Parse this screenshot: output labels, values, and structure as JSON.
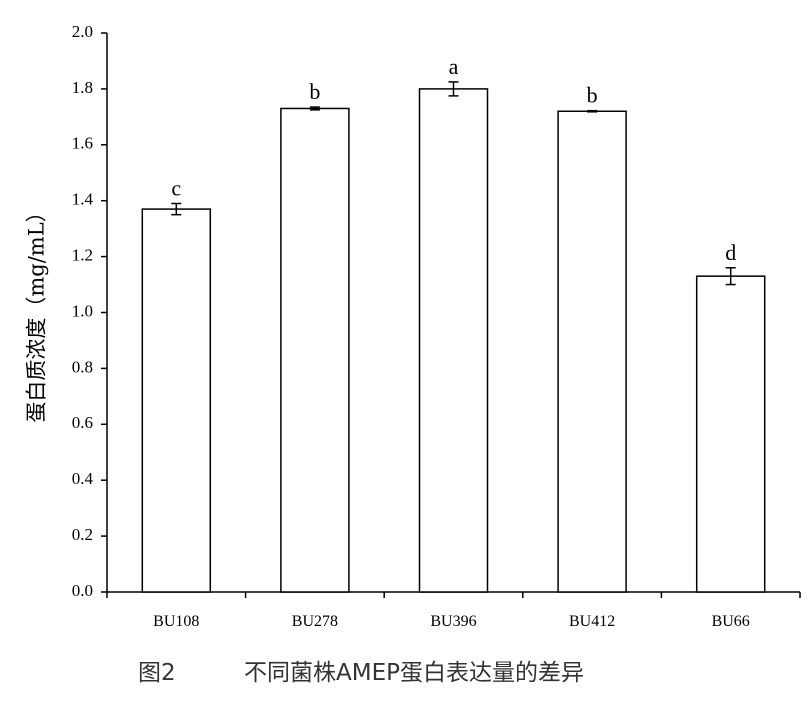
{
  "chart_data": {
    "type": "bar",
    "y_label": "蛋白质浓度（mg/mL）",
    "caption_number": "图2",
    "caption": "不同菌株AMEP蛋白表达量的差异",
    "categories": [
      "BU108",
      "BU278",
      "BU396",
      "BU412",
      "BU66"
    ],
    "values": [
      1.37,
      1.73,
      1.8,
      1.72,
      1.13
    ],
    "errors": [
      0.02,
      0.005,
      0.025,
      0.002,
      0.03
    ],
    "annotations": [
      "c",
      "b",
      "a",
      "b",
      "d"
    ],
    "color": "#ffffff",
    "edge_color": "#000000",
    "ylim": [
      0,
      2.0
    ],
    "yticks": [
      {
        "value": 0,
        "label": "0.0"
      },
      {
        "value": 0.2,
        "label": "0.2"
      },
      {
        "value": 0.4,
        "label": "0.4"
      },
      {
        "value": 0.6,
        "label": "0.6"
      },
      {
        "value": 0.8,
        "label": "0.8"
      },
      {
        "value": 1.0,
        "label": "1.0"
      },
      {
        "value": 1.2,
        "label": "1.2"
      },
      {
        "value": 1.4,
        "label": "1.4"
      },
      {
        "value": 1.6,
        "label": "1.6"
      },
      {
        "value": 1.8,
        "label": "1.8"
      },
      {
        "value": 2.0,
        "label": "2.0"
      }
    ]
  }
}
